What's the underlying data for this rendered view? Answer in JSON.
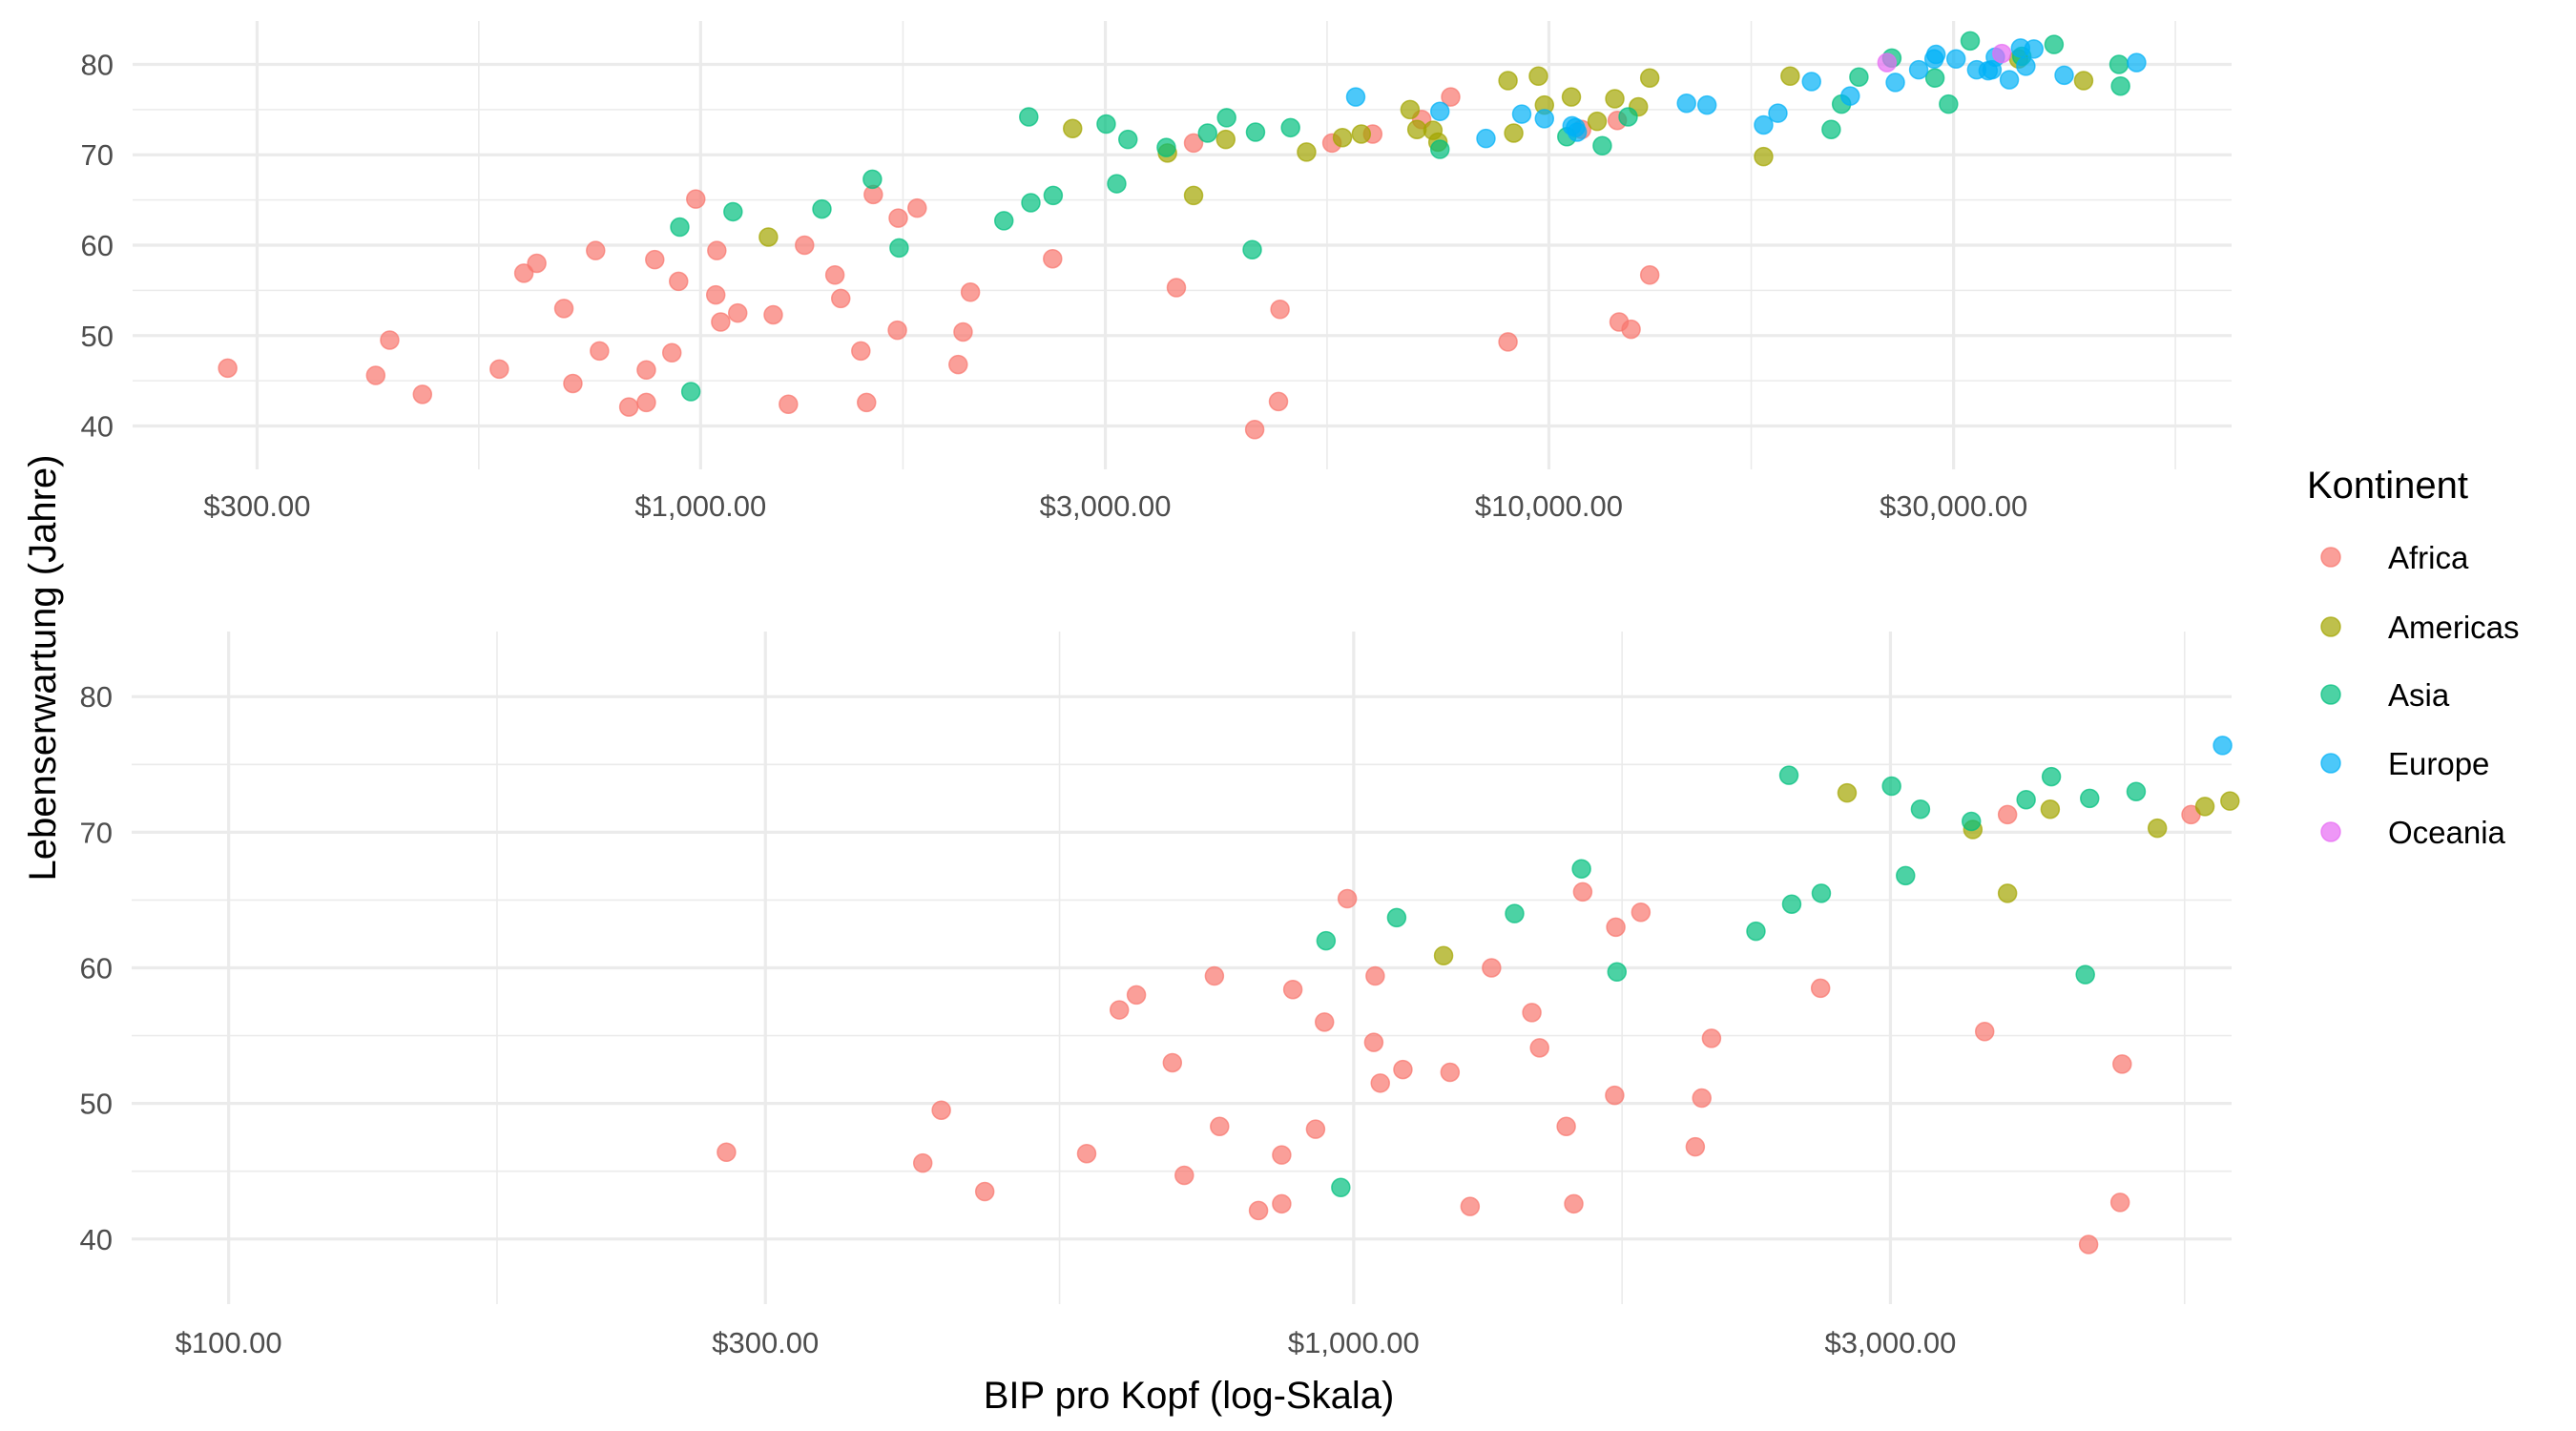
{
  "chart_data": {
    "type": "scatter",
    "xlabel": "BIP pro Kopf (log-Skala)",
    "ylabel": "Lebenserwartung (Jahre)",
    "x_scale": "log10",
    "legend": {
      "title": "Kontinent",
      "position": "right",
      "entries": [
        {
          "name": "Africa",
          "color": "#F8766D"
        },
        {
          "name": "Americas",
          "color": "#A3A500"
        },
        {
          "name": "Asia",
          "color": "#00BF7D"
        },
        {
          "name": "Europe",
          "color": "#00B0F6"
        },
        {
          "name": "Oceania",
          "color": "#E76BF3"
        }
      ]
    },
    "panels": [
      {
        "name": "full-range",
        "xlim": [
          214,
          63800
        ],
        "ylim": [
          35.2,
          84.8
        ],
        "x_ticks": [
          300,
          1000,
          3000,
          10000,
          30000
        ],
        "x_tick_labels": [
          "$300.00",
          "$1,000.00",
          "$3,000.00",
          "$10,000.00",
          "$30,000.00"
        ],
        "y_ticks": [
          40,
          50,
          60,
          70,
          80
        ],
        "y_tick_labels": [
          "40",
          "50",
          "60",
          "70",
          "80"
        ],
        "grid": true
      },
      {
        "name": "zoomed-low-income",
        "xlim": [
          82,
          6030
        ],
        "ylim": [
          35.2,
          84.8
        ],
        "x_ticks": [
          100,
          300,
          1000,
          3000
        ],
        "x_tick_labels": [
          "$100.00",
          "$300.00",
          "$1,000.00",
          "$3,000.00"
        ],
        "y_ticks": [
          40,
          50,
          60,
          70,
          80
        ],
        "y_tick_labels": [
          "40",
          "50",
          "60",
          "70",
          "80"
        ],
        "grid": true
      }
    ],
    "series": [
      {
        "name": "Africa",
        "points": [
          [
            277,
            46.4
          ],
          [
            414,
            45.6
          ],
          [
            430,
            49.5
          ],
          [
            470,
            43.5
          ],
          [
            579,
            46.3
          ],
          [
            619,
            56.9
          ],
          [
            641,
            58.0
          ],
          [
            690,
            53.0
          ],
          [
            752,
            59.4
          ],
          [
            760,
            48.3
          ],
          [
            707,
            44.7
          ],
          [
            823,
            42.1
          ],
          [
            883,
            58.4
          ],
          [
            942,
            56.0
          ],
          [
            863,
            46.2
          ],
          [
            925,
            48.1
          ],
          [
            863,
            42.6
          ],
          [
            987,
            65.1
          ],
          [
            1045,
            59.4
          ],
          [
            1042,
            54.5
          ],
          [
            1056,
            51.5
          ],
          [
            1106,
            52.5
          ],
          [
            1218,
            52.3
          ],
          [
            1269,
            42.4
          ],
          [
            1326,
            60.0
          ],
          [
            1440,
            56.7
          ],
          [
            1463,
            54.1
          ],
          [
            1598,
            65.6
          ],
          [
            1545,
            48.3
          ],
          [
            1569,
            42.6
          ],
          [
            1710,
            63.0
          ],
          [
            1706,
            50.6
          ],
          [
            1800,
            64.1
          ],
          [
            2012,
            46.8
          ],
          [
            2039,
            50.4
          ],
          [
            2080,
            54.8
          ],
          [
            2600,
            58.5
          ],
          [
            3812,
            71.3
          ],
          [
            3638,
            55.3
          ],
          [
            4820,
            52.9
          ],
          [
            4800,
            42.7
          ],
          [
            4500,
            39.6
          ],
          [
            5550,
            71.3
          ],
          [
            6200,
            72.3
          ],
          [
            7080,
            73.9
          ],
          [
            7660,
            76.4
          ],
          [
            10930,
            72.8
          ],
          [
            12040,
            73.8
          ],
          [
            12100,
            51.5
          ],
          [
            12500,
            50.7
          ],
          [
            13150,
            56.7
          ],
          [
            8950,
            49.3
          ]
        ]
      },
      {
        "name": "Americas",
        "points": [
          [
            1202,
            60.9
          ],
          [
            2745,
            72.9
          ],
          [
            3551,
            70.2
          ],
          [
            3812,
            65.5
          ],
          [
            4160,
            71.7
          ],
          [
            5180,
            70.3
          ],
          [
            5710,
            71.9
          ],
          [
            6010,
            72.3
          ],
          [
            6860,
            75.0
          ],
          [
            6990,
            72.8
          ],
          [
            7300,
            72.7
          ],
          [
            7400,
            71.4
          ],
          [
            8950,
            78.2
          ],
          [
            9090,
            72.4
          ],
          [
            9720,
            78.7
          ],
          [
            9880,
            75.5
          ],
          [
            10630,
            76.4
          ],
          [
            11400,
            73.7
          ],
          [
            11960,
            76.2
          ],
          [
            12750,
            75.3
          ],
          [
            13150,
            78.5
          ],
          [
            17910,
            69.8
          ],
          [
            19250,
            78.7
          ],
          [
            35800,
            80.6
          ],
          [
            42700,
            78.2
          ]
        ]
      },
      {
        "name": "Asia",
        "points": [
          [
            945,
            62.0
          ],
          [
            974,
            43.8
          ],
          [
            1092,
            63.7
          ],
          [
            1390,
            64.0
          ],
          [
            1594,
            67.3
          ],
          [
            1714,
            59.7
          ],
          [
            2278,
            62.7
          ],
          [
            2451,
            64.7
          ],
          [
            2604,
            65.5
          ],
          [
            2437,
            74.2
          ],
          [
            3007,
            73.4
          ],
          [
            3190,
            71.7
          ],
          [
            3094,
            66.8
          ],
          [
            3540,
            70.8
          ],
          [
            3960,
            72.4
          ],
          [
            4170,
            74.1
          ],
          [
            4510,
            72.5
          ],
          [
            4470,
            59.5
          ],
          [
            4960,
            73.0
          ],
          [
            7440,
            70.6
          ],
          [
            10500,
            72.0
          ],
          [
            11560,
            71.0
          ],
          [
            12400,
            74.2
          ],
          [
            21520,
            72.8
          ],
          [
            22130,
            75.6
          ],
          [
            23200,
            78.6
          ],
          [
            25370,
            80.7
          ],
          [
            28520,
            78.5
          ],
          [
            29590,
            75.6
          ],
          [
            31380,
            82.6
          ],
          [
            36100,
            80.9
          ],
          [
            39400,
            82.2
          ],
          [
            47000,
            80.0
          ],
          [
            47200,
            77.6
          ]
        ]
      },
      {
        "name": "Europe",
        "points": [
          [
            5920,
            76.4
          ],
          [
            7440,
            74.8
          ],
          [
            8430,
            71.8
          ],
          [
            9290,
            74.5
          ],
          [
            9880,
            74.0
          ],
          [
            10750,
            73.0
          ],
          [
            10650,
            73.2
          ],
          [
            10800,
            72.5
          ],
          [
            14530,
            75.7
          ],
          [
            15360,
            75.5
          ],
          [
            17910,
            73.3
          ],
          [
            18620,
            74.6
          ],
          [
            20400,
            78.1
          ],
          [
            22660,
            76.5
          ],
          [
            25610,
            78.0
          ],
          [
            27290,
            79.4
          ],
          [
            28450,
            80.6
          ],
          [
            28600,
            81.1
          ],
          [
            30200,
            80.6
          ],
          [
            31940,
            79.4
          ],
          [
            32950,
            79.3
          ],
          [
            33300,
            79.4
          ],
          [
            33600,
            80.8
          ],
          [
            34900,
            78.3
          ],
          [
            35980,
            81.8
          ],
          [
            36500,
            79.8
          ],
          [
            37300,
            81.7
          ],
          [
            40500,
            78.8
          ],
          [
            49300,
            80.2
          ]
        ]
      },
      {
        "name": "Oceania",
        "points": [
          [
            25040,
            80.2
          ],
          [
            34200,
            81.2
          ]
        ]
      }
    ]
  }
}
